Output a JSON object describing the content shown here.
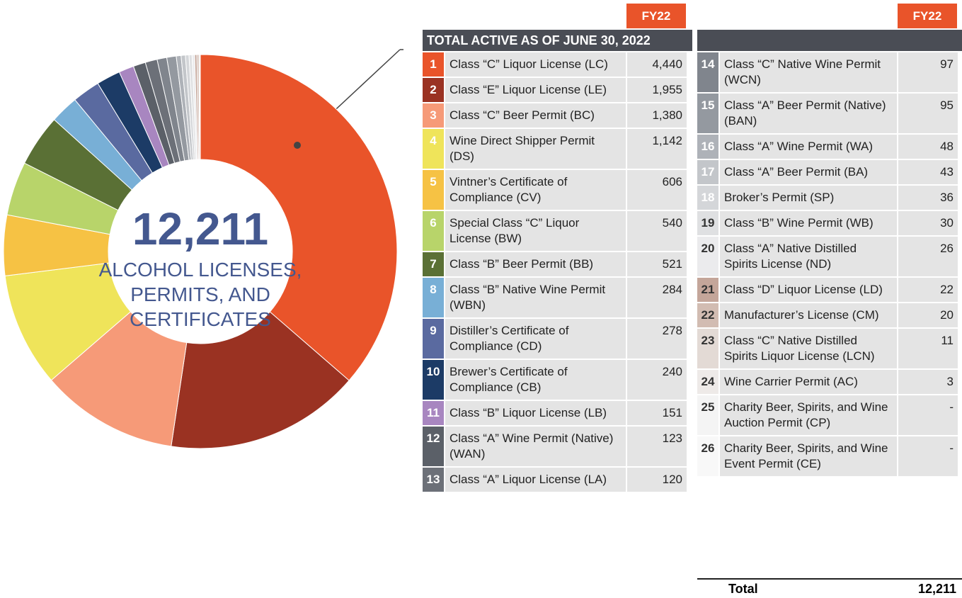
{
  "chart_data": {
    "type": "donut",
    "center_value": "12,211",
    "center_lines": [
      "ALCOHOL LICENSES,",
      "PERMITS, AND",
      "CERTIFICATES"
    ],
    "table_title": "TOTAL ACTIVE AS OF JUNE 30, 2022",
    "column_header": "FY22",
    "total_label": "Total",
    "total_value": "12,211",
    "rank": [
      1,
      2,
      3,
      4,
      5,
      6,
      7,
      8,
      9,
      10,
      11,
      12,
      13,
      14,
      15,
      16,
      17,
      18,
      19,
      20,
      21,
      22,
      23,
      24,
      25,
      26
    ],
    "categories": [
      "Class “C” Liquor License (LC)",
      "Class “E” Liquor License (LE)",
      "Class “C” Beer Permit (BC)",
      "Wine Direct Shipper Permit (DS)",
      "Vintner’s Certificate of Compliance (CV)",
      "Special Class “C” Liquor License (BW)",
      "Class “B” Beer Permit (BB)",
      "Class “B” Native Wine Permit (WBN)",
      "Distiller’s Certificate of Compliance (CD)",
      "Brewer’s Certificate of Compliance (CB)",
      "Class “B” Liquor License (LB)",
      "Class “A” Wine Permit (Native) (WAN)",
      "Class “A” Liquor License (LA)",
      "Class “C” Native Wine Permit (WCN)",
      "Class “A” Beer Permit (Native) (BAN)",
      "Class “A” Wine Permit (WA)",
      "Class “A” Beer Permit (BA)",
      "Broker’s Permit (SP)",
      "Class “B” Wine Permit (WB)",
      "Class “A” Native Distilled Spirits License (ND)",
      "Class “D” Liquor License (LD)",
      "Manufacturer’s License (CM)",
      "Class “C” Native Distilled Spirits Liquor License (LCN)",
      "Wine Carrier Permit (AC)",
      "Charity Beer, Spirits, and Wine Auction Permit (CP)",
      "Charity Beer, Spirits, and Wine Event Permit (CE)"
    ],
    "values": [
      4440,
      1955,
      1380,
      1142,
      606,
      540,
      521,
      284,
      278,
      240,
      151,
      123,
      120,
      97,
      95,
      48,
      43,
      36,
      30,
      26,
      22,
      20,
      11,
      3,
      null,
      null
    ],
    "value_labels": [
      "4,440",
      "1,955",
      "1,380",
      "1,142",
      "606",
      "540",
      "521",
      "284",
      "278",
      "240",
      "151",
      "123",
      "120",
      "97",
      "95",
      "48",
      "43",
      "36",
      "30",
      "26",
      "22",
      "20",
      "11",
      "3",
      "-",
      "-"
    ],
    "colors": [
      "#e9542a",
      "#9a3222",
      "#f69a78",
      "#efe45a",
      "#f6c244",
      "#b8d46a",
      "#5a7035",
      "#78afd6",
      "#5a6aa0",
      "#1c3b66",
      "#a886c0",
      "#5b6068",
      "#6c7078",
      "#80858d",
      "#9499a0",
      "#aeb2b8",
      "#c3c6ca",
      "#d4d6d9",
      "#dfe0e2",
      "#ebebed",
      "#c4a69a",
      "#d2bcb2",
      "#e3dad5",
      "#eeeae8",
      "#f4f4f4",
      "#f8f8f8"
    ]
  }
}
